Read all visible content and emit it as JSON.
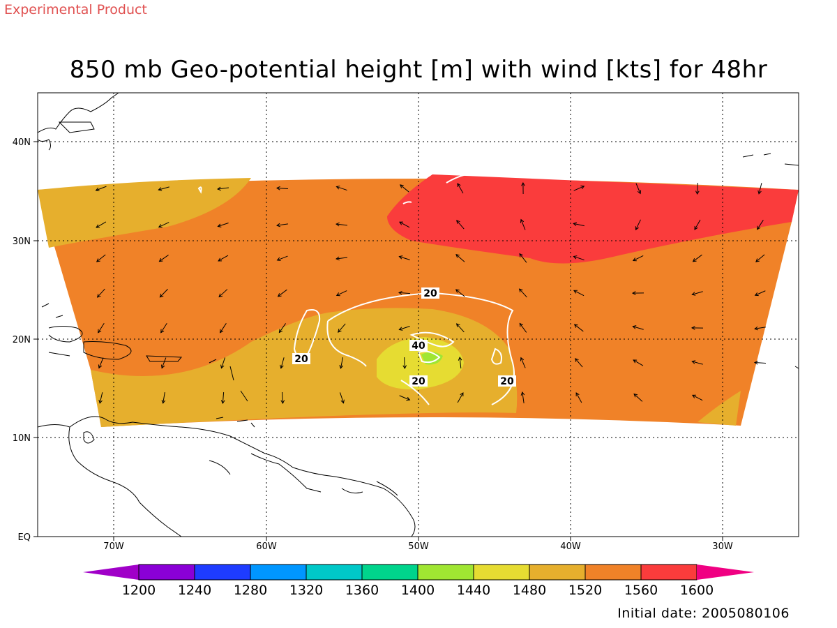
{
  "header": {
    "tag": "Experimental Product",
    "title": "850 mb Geo-potential height [m] with wind [kts] for 48hr"
  },
  "footer": {
    "initial_date": "Initial date: 2005080106"
  },
  "map": {
    "lon_labels": [
      "70W",
      "60W",
      "50W",
      "40W",
      "30W"
    ],
    "lat_labels": [
      "EQ",
      "10N",
      "20N",
      "30N",
      "40N"
    ],
    "contour_labels": [
      "20",
      "20",
      "40",
      "20",
      "20"
    ]
  },
  "colorbar": {
    "labels": [
      "1200",
      "1240",
      "1280",
      "1320",
      "1360",
      "1400",
      "1440",
      "1480",
      "1520",
      "1560",
      "1600"
    ],
    "colors": [
      "#8a00d6",
      "#1e3cff",
      "#0096ff",
      "#00c8c8",
      "#00d48c",
      "#a0e632",
      "#e6dc32",
      "#e6af2d",
      "#f08228",
      "#fa3c3c"
    ],
    "end_low_color": "#a000c8",
    "end_high_color": "#f00082"
  }
}
